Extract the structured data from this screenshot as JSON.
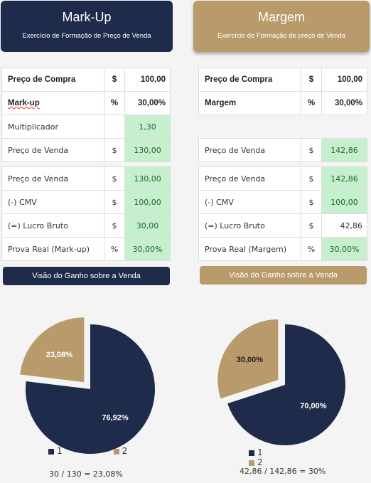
{
  "left": {
    "header": {
      "title": "Mark-Up",
      "subtitle": "Exercício de Formação de Preço de Venda"
    },
    "inputs": [
      {
        "label": "Preço de Compra",
        "unit": "$",
        "value": "100,00"
      },
      {
        "label": "Mark-up",
        "unit": "%",
        "value": "30,00%"
      },
      {
        "label": "Multiplicador",
        "unit": "",
        "value": "1,30"
      },
      {
        "label": "Preço de Venda",
        "unit": "$",
        "value": "130,00"
      }
    ],
    "results": [
      {
        "label": "Preço de Venda",
        "unit": "$",
        "value": "130,00"
      },
      {
        "label": "(-) CMV",
        "unit": "$",
        "value": "100,00"
      },
      {
        "label": "(=) Lucro Bruto",
        "unit": "$",
        "value": "30,00"
      },
      {
        "label": "Prova Real (Mark-up)",
        "unit": "%",
        "value": "30,00%"
      }
    ],
    "band": "Visão do Ganho sobre a Venda",
    "pie": {
      "slice1_label": "76,92%",
      "slice2_label": "23,08%"
    },
    "formula": "30 / 130 = 23,08%"
  },
  "right": {
    "header": {
      "title": "Margem",
      "subtitle": "Exercício de Formação de preço de Venda"
    },
    "inputs": [
      {
        "label": "Preço de Compra",
        "unit": "$",
        "value": "100,00"
      },
      {
        "label": "Margem",
        "unit": "%",
        "value": "30,00%"
      }
    ],
    "price": {
      "label": "Preço de Venda",
      "unit": "$",
      "value": "142,86"
    },
    "results": [
      {
        "label": "Preço de Venda",
        "unit": "$",
        "value": "142,86"
      },
      {
        "label": "(-) CMV",
        "unit": "$",
        "value": "100,00"
      },
      {
        "label": "(=) Lucro Bruto",
        "unit": "$",
        "value": "42,86"
      },
      {
        "label": "Prova Real (Margem)",
        "unit": "%",
        "value": "30,00%"
      }
    ],
    "band": "Visão do Ganho sobre a Venda",
    "pie": {
      "slice1_label": "70,00%",
      "slice2_label": "30,00%"
    },
    "formula": "42,86 / 142,86 = 30%"
  },
  "legend": {
    "item1": "1",
    "item2": "2"
  },
  "colors": {
    "navy": "#1e2b4a",
    "gold": "#b99b6b",
    "green_fill": "#c6efce",
    "green_text": "#1a6b2e"
  },
  "chart_data": [
    {
      "type": "pie",
      "categories": [
        "1",
        "2"
      ],
      "values": [
        76.92,
        23.08
      ],
      "labels": [
        "76,92%",
        "23,08%"
      ],
      "colors": [
        "#1e2b4a",
        "#b99b6b"
      ],
      "exploded": [
        false,
        true
      ],
      "legend": "bottom"
    },
    {
      "type": "pie",
      "categories": [
        "1",
        "2"
      ],
      "values": [
        70.0,
        30.0
      ],
      "labels": [
        "70,00%",
        "30,00%"
      ],
      "colors": [
        "#1e2b4a",
        "#b99b6b"
      ],
      "exploded": [
        false,
        true
      ],
      "legend": "bottom"
    }
  ]
}
